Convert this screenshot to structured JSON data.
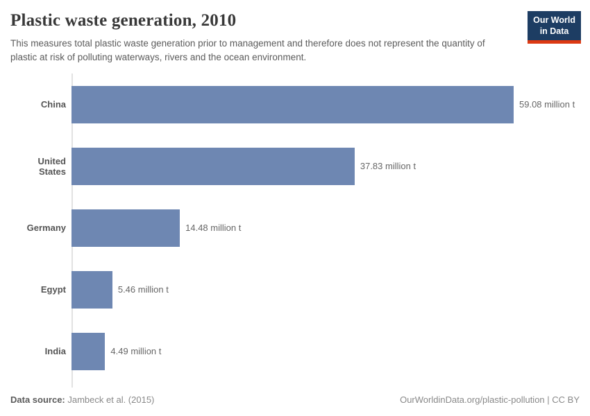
{
  "header": {
    "title": "Plastic waste generation, 2010",
    "subtitle": "This measures total plastic waste generation prior to management and therefore does not represent the quantity of plastic at risk of polluting waterways, rivers and the ocean environment."
  },
  "logo": {
    "line1": "Our World",
    "line2": "in Data",
    "bg_color": "#1d3d63",
    "underline_color": "#dc3912"
  },
  "chart_data": {
    "type": "bar",
    "orientation": "horizontal",
    "title": "Plastic waste generation, 2010",
    "categories": [
      "China",
      "United States",
      "Germany",
      "Egypt",
      "India"
    ],
    "values": [
      59.08,
      37.83,
      14.48,
      5.46,
      4.49
    ],
    "value_labels": [
      "59.08 million t",
      "37.83 million t",
      "14.48 million t",
      "5.46 million t",
      "4.49 million t"
    ],
    "unit": "million t",
    "xlim": [
      0,
      59.08
    ],
    "grid": false,
    "legend": "none",
    "bar_color": "#6e87b2",
    "axis_line_color": "#e2e2e2"
  },
  "footer": {
    "source_label": "Data source:",
    "source_value": "Jambeck et al. (2015)",
    "credit": "OurWorldinData.org/plastic-pollution | CC BY"
  }
}
